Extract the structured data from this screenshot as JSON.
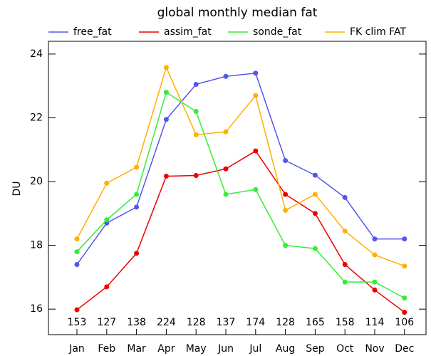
{
  "chart_data": {
    "type": "line",
    "title": "global monthly median fat",
    "ylabel": "DU",
    "categories": [
      "Jan",
      "Feb",
      "Mar",
      "Apr",
      "May",
      "Jun",
      "Jul",
      "Aug",
      "Sep",
      "Oct",
      "Nov",
      "Dec"
    ],
    "counts": [
      153,
      127,
      138,
      224,
      128,
      137,
      174,
      128,
      165,
      158,
      114,
      106
    ],
    "ylim": [
      15.2,
      24.4
    ],
    "yticks": [
      16,
      18,
      20,
      22,
      24
    ],
    "series": [
      {
        "name": "free_fat",
        "color": "#5555ee",
        "values": [
          17.4,
          18.7,
          19.2,
          21.95,
          23.05,
          23.3,
          23.4,
          20.66,
          20.2,
          19.5,
          18.2,
          18.2
        ]
      },
      {
        "name": "assim_fat",
        "color": "#ee0000",
        "values": [
          15.98,
          16.7,
          17.75,
          20.17,
          20.19,
          20.4,
          20.96,
          19.6,
          19.0,
          17.4,
          16.6,
          15.9
        ]
      },
      {
        "name": "sonde_fat",
        "color": "#33ee33",
        "values": [
          17.8,
          18.8,
          19.6,
          22.8,
          22.2,
          19.6,
          19.75,
          18.0,
          17.9,
          16.85,
          16.85,
          16.35
        ]
      },
      {
        "name": "FK clim FAT",
        "color": "#ffb000",
        "values": [
          18.2,
          19.95,
          20.45,
          23.58,
          21.47,
          21.56,
          22.7,
          19.1,
          19.6,
          18.45,
          17.7,
          17.35
        ]
      }
    ]
  }
}
